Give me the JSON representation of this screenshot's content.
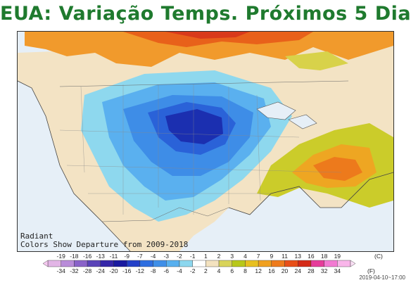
{
  "title": "EUA: Variação Temps. Próximos 5 Dias",
  "credit": {
    "line1": "Radiant",
    "line2": "Colors Show Departure from 2009-2018"
  },
  "scale": {
    "celsius_unit": "(C)",
    "fahrenheit_unit": "(F)",
    "celsius_labels": [
      "-19",
      "-18",
      "-16",
      "-13",
      "-11",
      "-9",
      "-7",
      "-4",
      "-3",
      "-2",
      "-1",
      "1",
      "2",
      "3",
      "4",
      "7",
      "9",
      "11",
      "13",
      "16",
      "18",
      "19"
    ],
    "fahrenheit_labels": [
      "-34",
      "-32",
      "-28",
      "-24",
      "-20",
      "-16",
      "-12",
      "-8",
      "-6",
      "-4",
      "-2",
      "2",
      "4",
      "6",
      "8",
      "12",
      "16",
      "20",
      "24",
      "28",
      "32",
      "34"
    ],
    "colors": [
      "#e2b5e6",
      "#b98cd9",
      "#8a63c9",
      "#5a43b8",
      "#3526a8",
      "#1a1aa0",
      "#2440c8",
      "#2e6ee0",
      "#3f8fe8",
      "#58b0ef",
      "#8cd7ee",
      "#ffffff",
      "#f3e2bf",
      "#d9d45a",
      "#b8c81a",
      "#e8c020",
      "#f0a020",
      "#ee7b1c",
      "#e84f18",
      "#d42a18",
      "#e63c9a",
      "#f27ad2",
      "#f9b6ea"
    ]
  },
  "timestamp": "2019-04-10~17:00"
}
